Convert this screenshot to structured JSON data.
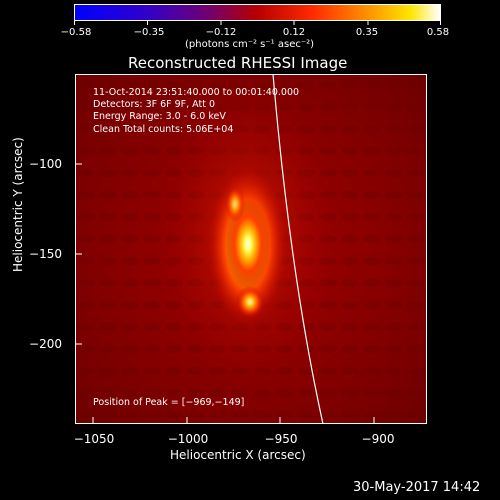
{
  "colorbar": {
    "ticks": [
      "−0.58",
      "−0.35",
      "−0.12",
      "0.12",
      "0.35",
      "0.58"
    ],
    "units": "(photons cm⁻² s⁻¹ asec⁻²)",
    "colors": [
      "#0000ff",
      "#5a00a0",
      "#a00000",
      "#ff3000",
      "#ffb000",
      "#ffffff"
    ]
  },
  "plot": {
    "title": "Reconstructed RHESSI Image",
    "annotation": [
      "11-Oct-2014 23:51:40.000 to 00:01:40.000",
      "Detectors: 3F 6F 9F, Att 0",
      "Energy Range: 3.0 - 6.0 keV",
      "Clean     Total counts: 5.06E+04"
    ],
    "peak_text": "Position of Peak = [−969,−149]",
    "xlabel": "Heliocentric X (arcsec)",
    "ylabel": "Heliocentric Y (arcsec)",
    "xticks": [
      "−1050",
      "−1000",
      "−950",
      "−900"
    ],
    "yticks": [
      "−100",
      "−150",
      "−200"
    ]
  },
  "footer": {
    "date": "30-May-2017 14:42"
  }
}
